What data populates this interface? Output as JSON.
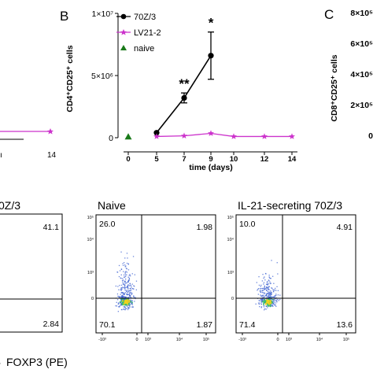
{
  "panel_letters": {
    "b": "B",
    "c": "C"
  },
  "chart_data": [
    {
      "type": "line",
      "panel": "B",
      "xlabel": "time (days)",
      "ylabel": "CD4⁺CD25⁺ cells",
      "xticks": [
        0,
        5,
        7,
        9,
        10,
        12,
        14
      ],
      "yticks": [
        {
          "value": 0,
          "label": "0"
        },
        {
          "value": 5000000,
          "label": "5×10⁶"
        },
        {
          "value": 10000000,
          "label": "1×10⁷"
        }
      ],
      "ylim": [
        0,
        10000000
      ],
      "legend_position": "top-left",
      "series": [
        {
          "name": "70Z/3",
          "marker": "circle",
          "color": "#000000",
          "points": [
            [
              5,
              400000
            ],
            [
              7,
              3200000
            ],
            [
              9,
              6600000
            ]
          ],
          "errors": [
            0,
            400000,
            1900000
          ]
        },
        {
          "name": "LV21-2",
          "marker": "star",
          "color": "#cc33cc",
          "points": [
            [
              5,
              100000
            ],
            [
              7,
              150000
            ],
            [
              9,
              350000
            ],
            [
              10,
              100000
            ],
            [
              12,
              100000
            ],
            [
              14,
              100000
            ]
          ]
        },
        {
          "name": "naive",
          "marker": "triangle",
          "color": "#1a7a1a",
          "points": [
            [
              0,
              50000
            ]
          ]
        }
      ],
      "significance": [
        {
          "x": 7,
          "label": "**"
        },
        {
          "x": 9,
          "label": "*"
        }
      ]
    },
    {
      "type": "line",
      "panel": "C",
      "ylabel": "CD8⁺CD25⁺ cells",
      "ytick_labels": [
        "8×10⁵",
        "6×10⁵",
        "4×10⁵",
        "2×10⁵",
        "0"
      ],
      "partial": true
    },
    {
      "type": "line",
      "panel": "A",
      "partial": true,
      "xticks_visible": [
        "14"
      ],
      "series": [
        {
          "color": "#cc33cc",
          "marker": "star"
        }
      ]
    },
    {
      "type": "scatter",
      "panel": "flow-1",
      "title": "0Z/3",
      "partial": true,
      "quadrants": {
        "upper_right": "41.1",
        "lower_right": "2.84"
      }
    },
    {
      "type": "scatter",
      "panel": "flow-2",
      "title": "Naive",
      "quadrants": {
        "upper_left": "26.0",
        "upper_right": "1.98",
        "lower_left": "70.1",
        "lower_right": "1.87"
      },
      "y_tick_labels": [
        "10⁵",
        "10⁴",
        "10³",
        "0"
      ],
      "x_tick_labels": [
        "-10³",
        "0",
        "10³",
        "10⁴",
        "10⁵"
      ]
    },
    {
      "type": "scatter",
      "panel": "flow-3",
      "title": "IL-21-secreting 70Z/3",
      "quadrants": {
        "upper_left": "10.0",
        "upper_right": "4.91",
        "lower_left": "71.4",
        "lower_right": "13.6"
      },
      "y_tick_labels": [
        "10⁵",
        "10⁴",
        "10³",
        "0"
      ],
      "x_tick_labels": [
        "-10³",
        "0",
        "10³",
        "10⁴",
        "10⁵"
      ]
    }
  ],
  "flow_xlabel": "FOXP3 (PE)",
  "colors": {
    "lv21": "#cc33cc",
    "naive": "#1a7a1a",
    "dots_blue": "#3a5fd0",
    "dots_core": "#f0d21c",
    "dots_mid": "#3cbf6b"
  }
}
